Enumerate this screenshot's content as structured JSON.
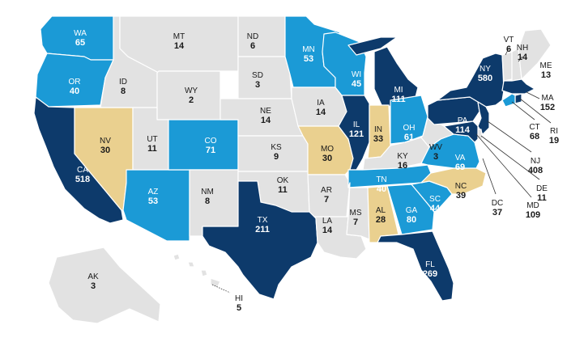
{
  "colors": {
    "dark": "#0d3a6b",
    "blue": "#1b9ad6",
    "tan": "#ead08f",
    "grey": "#e2e2e2",
    "text_dark_fill": "#ffffff",
    "text_light_fill": "#1a1a1a"
  },
  "states": [
    {
      "abbr": "WA",
      "value": "65",
      "tier": "blue"
    },
    {
      "abbr": "OR",
      "value": "40",
      "tier": "blue"
    },
    {
      "abbr": "CA",
      "value": "518",
      "tier": "dark"
    },
    {
      "abbr": "NV",
      "value": "30",
      "tier": "tan"
    },
    {
      "abbr": "ID",
      "value": "8",
      "tier": "grey"
    },
    {
      "abbr": "MT",
      "value": "14",
      "tier": "grey"
    },
    {
      "abbr": "WY",
      "value": "2",
      "tier": "grey"
    },
    {
      "abbr": "UT",
      "value": "11",
      "tier": "grey"
    },
    {
      "abbr": "AZ",
      "value": "53",
      "tier": "blue"
    },
    {
      "abbr": "CO",
      "value": "71",
      "tier": "blue"
    },
    {
      "abbr": "NM",
      "value": "8",
      "tier": "grey"
    },
    {
      "abbr": "ND",
      "value": "6",
      "tier": "grey"
    },
    {
      "abbr": "SD",
      "value": "3",
      "tier": "grey"
    },
    {
      "abbr": "NE",
      "value": "14",
      "tier": "grey"
    },
    {
      "abbr": "KS",
      "value": "9",
      "tier": "grey"
    },
    {
      "abbr": "OK",
      "value": "11",
      "tier": "grey"
    },
    {
      "abbr": "TX",
      "value": "211",
      "tier": "dark"
    },
    {
      "abbr": "MN",
      "value": "53",
      "tier": "blue"
    },
    {
      "abbr": "IA",
      "value": "14",
      "tier": "grey"
    },
    {
      "abbr": "MO",
      "value": "30",
      "tier": "tan"
    },
    {
      "abbr": "AR",
      "value": "7",
      "tier": "grey"
    },
    {
      "abbr": "LA",
      "value": "14",
      "tier": "grey"
    },
    {
      "abbr": "WI",
      "value": "45",
      "tier": "blue"
    },
    {
      "abbr": "IL",
      "value": "121",
      "tier": "dark"
    },
    {
      "abbr": "MI",
      "value": "111",
      "tier": "dark"
    },
    {
      "abbr": "IN",
      "value": "33",
      "tier": "tan"
    },
    {
      "abbr": "OH",
      "value": "61",
      "tier": "blue"
    },
    {
      "abbr": "KY",
      "value": "16",
      "tier": "grey"
    },
    {
      "abbr": "TN",
      "value": "40",
      "tier": "blue"
    },
    {
      "abbr": "MS",
      "value": "7",
      "tier": "grey"
    },
    {
      "abbr": "AL",
      "value": "28",
      "tier": "tan"
    },
    {
      "abbr": "GA",
      "value": "80",
      "tier": "blue"
    },
    {
      "abbr": "FL",
      "value": "269",
      "tier": "dark"
    },
    {
      "abbr": "SC",
      "value": "44",
      "tier": "blue"
    },
    {
      "abbr": "NC",
      "value": "39",
      "tier": "tan"
    },
    {
      "abbr": "VA",
      "value": "69",
      "tier": "blue"
    },
    {
      "abbr": "WV",
      "value": "3",
      "tier": "grey"
    },
    {
      "abbr": "PA",
      "value": "114",
      "tier": "dark"
    },
    {
      "abbr": "NY",
      "value": "580",
      "tier": "dark"
    },
    {
      "abbr": "VT",
      "value": "6",
      "tier": "grey"
    },
    {
      "abbr": "NH",
      "value": "14",
      "tier": "grey"
    },
    {
      "abbr": "ME",
      "value": "13",
      "tier": "grey"
    },
    {
      "abbr": "MA",
      "value": "152",
      "tier": "dark"
    },
    {
      "abbr": "RI",
      "value": "19",
      "tier": "dark"
    },
    {
      "abbr": "CT",
      "value": "68",
      "tier": "blue"
    },
    {
      "abbr": "NJ",
      "value": "408",
      "tier": "dark"
    },
    {
      "abbr": "DE",
      "value": "11",
      "tier": "grey"
    },
    {
      "abbr": "MD",
      "value": "109",
      "tier": "dark"
    },
    {
      "abbr": "DC",
      "value": "37",
      "tier": "tan"
    },
    {
      "abbr": "AK",
      "value": "3",
      "tier": "grey"
    },
    {
      "abbr": "HI",
      "value": "5",
      "tier": "grey"
    }
  ]
}
